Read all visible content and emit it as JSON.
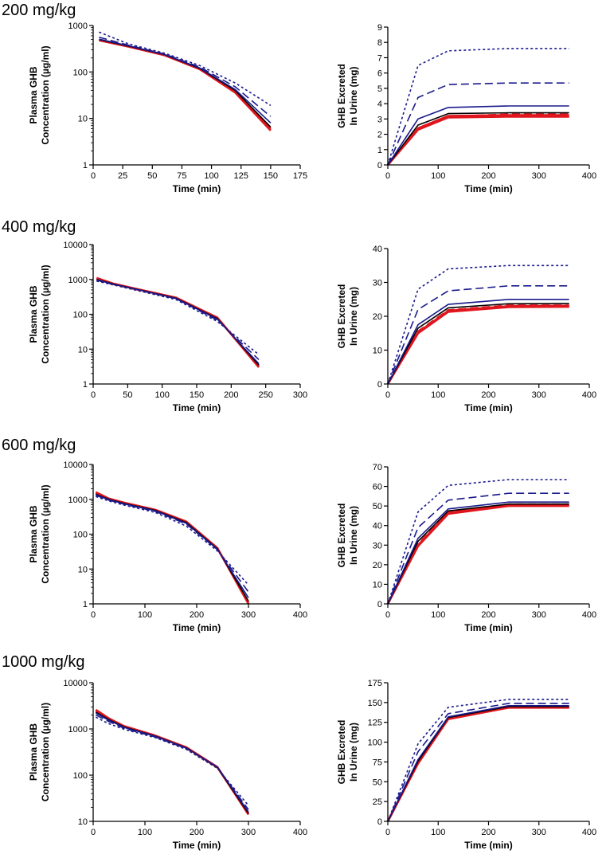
{
  "figure": {
    "colors": {
      "red": "#e0161e",
      "black": "#000000",
      "blue": "#1a1a8c",
      "axis": "#000000"
    }
  },
  "chart_data": [
    {
      "id": "p200",
      "panel": "200 mg/kg",
      "type": "line",
      "title": "",
      "xlabel": "Time (min)",
      "ylabel": [
        "Plasma GHB",
        "Concentration  (µg/ml)"
      ],
      "yscale": "log",
      "xlim": [
        0,
        175
      ],
      "ylim": [
        1,
        1000
      ],
      "xticks": [
        "0",
        "25",
        "50",
        "75",
        "100",
        "125",
        "150",
        "175"
      ],
      "yticks": [
        "1",
        "10",
        "100",
        "1000"
      ],
      "x": [
        5,
        30,
        60,
        90,
        120,
        150
      ],
      "series": [
        {
          "name": "red-1",
          "color": "red",
          "style": "solid",
          "values": [
            480,
            350,
            230,
            115,
            36,
            5.5
          ]
        },
        {
          "name": "red-2",
          "color": "red",
          "style": "solid",
          "values": [
            490,
            355,
            235,
            118,
            38,
            6
          ]
        },
        {
          "name": "black",
          "color": "black",
          "style": "solid",
          "values": [
            500,
            360,
            238,
            120,
            40,
            6.5
          ]
        },
        {
          "name": "blue-solid",
          "color": "blue",
          "style": "solid",
          "values": [
            510,
            365,
            240,
            122,
            42,
            8
          ]
        },
        {
          "name": "blue-dashed",
          "color": "blue",
          "style": "dashed",
          "values": [
            560,
            375,
            245,
            128,
            48,
            11
          ]
        },
        {
          "name": "blue-dotted",
          "color": "blue",
          "style": "dotted",
          "values": [
            720,
            400,
            255,
            138,
            58,
            19
          ]
        }
      ]
    },
    {
      "id": "u200",
      "panel": "200 mg/kg",
      "type": "line",
      "title": "",
      "xlabel": "Time (min)",
      "ylabel": [
        "GHB Excreted",
        "In Urine (mg)"
      ],
      "yscale": "linear",
      "xlim": [
        0,
        400
      ],
      "ylim": [
        0,
        9
      ],
      "xticks": [
        "0",
        "100",
        "200",
        "300",
        "400"
      ],
      "yticks": [
        "0",
        "1",
        "2",
        "3",
        "4",
        "5",
        "6",
        "7",
        "8",
        "9"
      ],
      "x": [
        0,
        60,
        120,
        240,
        360
      ],
      "series": [
        {
          "name": "red-1",
          "color": "red",
          "style": "solid",
          "values": [
            0,
            2.3,
            3.1,
            3.15,
            3.15
          ]
        },
        {
          "name": "red-2",
          "color": "red",
          "style": "solid",
          "values": [
            0,
            2.4,
            3.2,
            3.25,
            3.25
          ]
        },
        {
          "name": "red-dashed",
          "color": "red",
          "style": "dashed",
          "values": [
            0,
            2.35,
            3.15,
            3.3,
            3.3
          ]
        },
        {
          "name": "black",
          "color": "black",
          "style": "solid",
          "values": [
            0,
            2.6,
            3.35,
            3.4,
            3.4
          ]
        },
        {
          "name": "blue-solid",
          "color": "blue",
          "style": "solid",
          "values": [
            0,
            3.0,
            3.75,
            3.85,
            3.85
          ]
        },
        {
          "name": "blue-dashed",
          "color": "blue",
          "style": "dashed",
          "values": [
            0,
            4.4,
            5.25,
            5.35,
            5.35
          ]
        },
        {
          "name": "blue-dotted",
          "color": "blue",
          "style": "dotted",
          "values": [
            0,
            6.5,
            7.45,
            7.6,
            7.6
          ]
        }
      ]
    },
    {
      "id": "p400",
      "panel": "400 mg/kg",
      "type": "line",
      "title": "",
      "xlabel": "Time (min)",
      "ylabel": [
        "Plasma GHB",
        "Concentration  (µg/ml)"
      ],
      "yscale": "log",
      "xlim": [
        0,
        300
      ],
      "ylim": [
        1,
        10000
      ],
      "xticks": [
        "0",
        "50",
        "100",
        "150",
        "200",
        "250",
        "300"
      ],
      "yticks": [
        "1",
        "10",
        "100",
        "1000",
        "10000"
      ],
      "x": [
        5,
        30,
        60,
        120,
        180,
        240
      ],
      "series": [
        {
          "name": "red-1",
          "color": "red",
          "style": "solid",
          "values": [
            1100,
            750,
            550,
            300,
            80,
            3.0
          ]
        },
        {
          "name": "red-2",
          "color": "red",
          "style": "solid",
          "values": [
            1050,
            740,
            545,
            295,
            78,
            3.2
          ]
        },
        {
          "name": "black",
          "color": "black",
          "style": "solid",
          "values": [
            1000,
            730,
            540,
            290,
            75,
            3.5
          ]
        },
        {
          "name": "blue-solid",
          "color": "blue",
          "style": "solid",
          "values": [
            980,
            720,
            535,
            285,
            72,
            3.8
          ]
        },
        {
          "name": "blue-dashed",
          "color": "blue",
          "style": "dashed",
          "values": [
            950,
            710,
            520,
            280,
            68,
            5
          ]
        },
        {
          "name": "blue-dotted",
          "color": "blue",
          "style": "dotted",
          "values": [
            900,
            690,
            500,
            265,
            62,
            7
          ]
        }
      ]
    },
    {
      "id": "u400",
      "panel": "400 mg/kg",
      "type": "line",
      "title": "",
      "xlabel": "Time (min)",
      "ylabel": [
        "GHB Excreted",
        "In Urine (mg)"
      ],
      "yscale": "linear",
      "xlim": [
        0,
        400
      ],
      "ylim": [
        0,
        40
      ],
      "xticks": [
        "0",
        "100",
        "200",
        "300",
        "400"
      ],
      "yticks": [
        "0",
        "10",
        "20",
        "30",
        "40"
      ],
      "x": [
        0,
        60,
        120,
        240,
        360
      ],
      "series": [
        {
          "name": "red-1",
          "color": "red",
          "style": "solid",
          "values": [
            0,
            15,
            21.3,
            22.7,
            22.8
          ]
        },
        {
          "name": "red-2",
          "color": "red",
          "style": "solid",
          "values": [
            0,
            15.3,
            21.6,
            23,
            23.1
          ]
        },
        {
          "name": "red-dashed",
          "color": "red",
          "style": "dashed",
          "values": [
            0,
            15.5,
            21.8,
            23.2,
            23.2
          ]
        },
        {
          "name": "black",
          "color": "black",
          "style": "solid",
          "values": [
            0,
            16.5,
            22.5,
            23.7,
            23.8
          ]
        },
        {
          "name": "blue-solid",
          "color": "blue",
          "style": "solid",
          "values": [
            0,
            17.5,
            23.5,
            25,
            25
          ]
        },
        {
          "name": "blue-dashed",
          "color": "blue",
          "style": "dashed",
          "values": [
            0,
            22,
            27.5,
            29,
            29
          ]
        },
        {
          "name": "blue-dotted",
          "color": "blue",
          "style": "dotted",
          "values": [
            0,
            28,
            34,
            35,
            35
          ]
        }
      ]
    },
    {
      "id": "p600",
      "panel": "600 mg/kg",
      "type": "line",
      "title": "",
      "xlabel": "Time (min)",
      "ylabel": [
        "Plasma GHB",
        "Concentration (µg/ml)"
      ],
      "yscale": "log",
      "xlim": [
        0,
        400
      ],
      "ylim": [
        1,
        10000
      ],
      "xticks": [
        "0",
        "100",
        "200",
        "300",
        "400"
      ],
      "yticks": [
        "1",
        "10",
        "100",
        "1000",
        "10000"
      ],
      "x": [
        5,
        30,
        60,
        120,
        180,
        240,
        300
      ],
      "series": [
        {
          "name": "red-1",
          "color": "red",
          "style": "solid",
          "values": [
            1600,
            1050,
            800,
            500,
            230,
            40,
            1.0
          ]
        },
        {
          "name": "red-2",
          "color": "red",
          "style": "solid",
          "values": [
            1500,
            1020,
            780,
            490,
            225,
            39,
            1.1
          ]
        },
        {
          "name": "black",
          "color": "black",
          "style": "solid",
          "values": [
            1400,
            1000,
            760,
            480,
            215,
            38,
            1.2
          ]
        },
        {
          "name": "blue-solid",
          "color": "blue",
          "style": "solid",
          "values": [
            1350,
            980,
            740,
            470,
            205,
            37,
            1.5
          ]
        },
        {
          "name": "blue-dashed",
          "color": "blue",
          "style": "dashed",
          "values": [
            1300,
            950,
            720,
            450,
            195,
            36,
            2.2
          ]
        },
        {
          "name": "blue-dotted",
          "color": "blue",
          "style": "dotted",
          "values": [
            1200,
            900,
            680,
            420,
            170,
            33,
            3.5
          ]
        }
      ]
    },
    {
      "id": "u600",
      "panel": "600 mg/kg",
      "type": "line",
      "title": "",
      "xlabel": "Time (min)",
      "ylabel": [
        "GHB Excreted",
        "In Urine (mg)"
      ],
      "yscale": "linear",
      "xlim": [
        0,
        400
      ],
      "ylim": [
        0,
        70
      ],
      "xticks": [
        "0",
        "100",
        "200",
        "300",
        "400"
      ],
      "yticks": [
        "0",
        "10",
        "20",
        "30",
        "40",
        "50",
        "60",
        "70"
      ],
      "x": [
        0,
        60,
        120,
        240,
        360
      ],
      "series": [
        {
          "name": "red-1",
          "color": "red",
          "style": "solid",
          "values": [
            0,
            29.5,
            46,
            50,
            50
          ]
        },
        {
          "name": "red-2",
          "color": "red",
          "style": "solid",
          "values": [
            0,
            30,
            46.5,
            50.5,
            50.5
          ]
        },
        {
          "name": "red-dashed",
          "color": "red",
          "style": "dashed",
          "values": [
            0,
            30.5,
            47,
            50.8,
            50.8
          ]
        },
        {
          "name": "black",
          "color": "black",
          "style": "solid",
          "values": [
            0,
            32,
            47.5,
            51,
            51
          ]
        },
        {
          "name": "blue-solid",
          "color": "blue",
          "style": "solid",
          "values": [
            0,
            33.5,
            48.5,
            52,
            52
          ]
        },
        {
          "name": "blue-dashed",
          "color": "blue",
          "style": "dashed",
          "values": [
            0,
            39,
            53,
            56.5,
            56.5
          ]
        },
        {
          "name": "blue-dotted",
          "color": "blue",
          "style": "dotted",
          "values": [
            0,
            47,
            60.5,
            63.5,
            63.5
          ]
        }
      ]
    },
    {
      "id": "p1000",
      "panel": "1000 mg/kg",
      "type": "line",
      "title": "",
      "xlabel": "Time (min)",
      "ylabel": [
        "Plasma GHB",
        "Concentration  (µg/ml)"
      ],
      "yscale": "log",
      "xlim": [
        0,
        400
      ],
      "ylim": [
        10,
        10000
      ],
      "xticks": [
        "0",
        "100",
        "200",
        "300",
        "400"
      ],
      "yticks": [
        "10",
        "100",
        "1000",
        "10000"
      ],
      "x": [
        5,
        30,
        60,
        120,
        180,
        240,
        300
      ],
      "series": [
        {
          "name": "red-1",
          "color": "red",
          "style": "solid",
          "values": [
            2600,
            1700,
            1150,
            720,
            400,
            150,
            14
          ]
        },
        {
          "name": "red-2",
          "color": "red",
          "style": "solid",
          "values": [
            2500,
            1650,
            1120,
            710,
            395,
            148,
            14.5
          ]
        },
        {
          "name": "black",
          "color": "black",
          "style": "solid",
          "values": [
            2300,
            1600,
            1100,
            700,
            390,
            147,
            15
          ]
        },
        {
          "name": "blue-solid",
          "color": "blue",
          "style": "solid",
          "values": [
            2200,
            1550,
            1080,
            690,
            385,
            150,
            16
          ]
        },
        {
          "name": "blue-dashed",
          "color": "blue",
          "style": "dashed",
          "values": [
            2000,
            1450,
            1030,
            670,
            375,
            145,
            18
          ]
        },
        {
          "name": "blue-dotted",
          "color": "blue",
          "style": "dotted",
          "values": [
            1800,
            1300,
            980,
            650,
            360,
            140,
            22
          ]
        }
      ]
    },
    {
      "id": "u1000",
      "panel": "1000 mg/kg",
      "type": "line",
      "title": "",
      "xlabel": "Time (min)",
      "ylabel": [
        "GHB Excreted",
        "In Urine (mg)"
      ],
      "yscale": "linear",
      "xlim": [
        0,
        400
      ],
      "ylim": [
        0,
        175
      ],
      "xticks": [
        "0",
        "100",
        "200",
        "300",
        "400"
      ],
      "yticks": [
        "0",
        "25",
        "50",
        "75",
        "100",
        "125",
        "150",
        "175"
      ],
      "x": [
        0,
        60,
        120,
        240,
        360
      ],
      "series": [
        {
          "name": "red-1",
          "color": "red",
          "style": "solid",
          "values": [
            0,
            73,
            129,
            143.5,
            143.5
          ]
        },
        {
          "name": "red-2",
          "color": "red",
          "style": "solid",
          "values": [
            0,
            74,
            130,
            144,
            144
          ]
        },
        {
          "name": "red-dashed",
          "color": "red",
          "style": "dashed",
          "values": [
            0,
            74.5,
            130.5,
            144.5,
            144.5
          ]
        },
        {
          "name": "black",
          "color": "black",
          "style": "solid",
          "values": [
            0,
            76,
            131,
            145,
            145
          ]
        },
        {
          "name": "blue-solid",
          "color": "blue",
          "style": "solid",
          "values": [
            0,
            78,
            132,
            146,
            146
          ]
        },
        {
          "name": "blue-dashed",
          "color": "blue",
          "style": "dashed",
          "values": [
            0,
            88,
            136,
            149,
            149
          ]
        },
        {
          "name": "blue-dotted",
          "color": "blue",
          "style": "dotted",
          "values": [
            0,
            98,
            144,
            154,
            154
          ]
        }
      ]
    }
  ]
}
